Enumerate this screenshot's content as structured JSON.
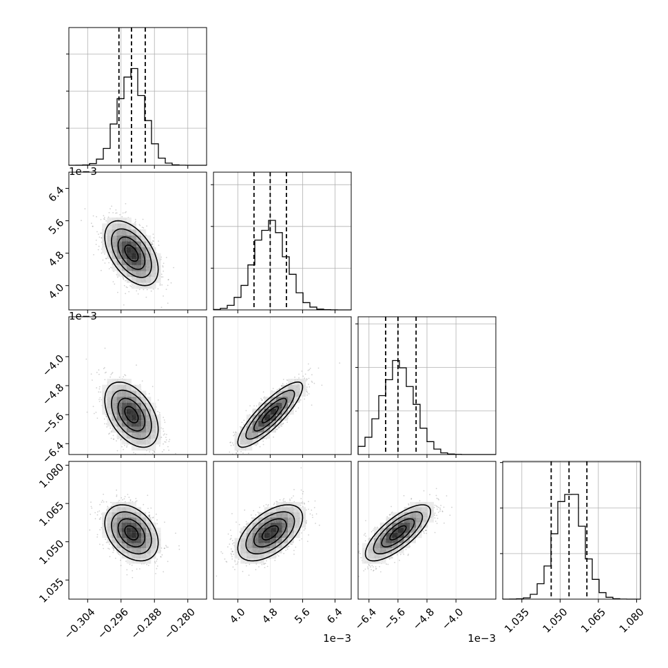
{
  "chart_data": {
    "type": "corner",
    "params": [
      {
        "name": "",
        "range": [
          -0.3085,
          -0.2755
        ],
        "mean": -0.2935,
        "sd": 0.0032,
        "quantiles": [
          -0.2965,
          -0.2935,
          -0.2902
        ],
        "ticks": [
          -0.304,
          -0.296,
          -0.288,
          -0.28
        ],
        "tick_labels": [
          "−0.304",
          "−0.296",
          "−0.288",
          "−0.280"
        ],
        "offset": "",
        "hist_peak": 0.27
      },
      {
        "name": "",
        "range": [
          0.0034,
          0.0068
        ],
        "mean": 0.0048,
        "sd": 0.0004,
        "quantiles": [
          0.0044,
          0.0048,
          0.0052
        ],
        "ticks": [
          0.004,
          0.0048,
          0.0056,
          0.0064
        ],
        "tick_labels": [
          "4.0",
          "4.8",
          "5.6",
          "6.4"
        ],
        "offset": "1e−3",
        "hist_peak": 0.24
      },
      {
        "name": "",
        "range": [
          -0.0067,
          -0.0029
        ],
        "mean": -0.0056,
        "sd": 0.00045,
        "quantiles": [
          -0.00594,
          -0.0056,
          -0.0051
        ],
        "ticks": [
          -0.0064,
          -0.0056,
          -0.0048,
          -0.004
        ],
        "tick_labels": [
          "−6.4",
          "−5.6",
          "−4.8",
          "−4.0"
        ],
        "offset": "1e−3",
        "hist_peak": 0.23
      },
      {
        "name": "",
        "range": [
          1.0275,
          1.0815
        ],
        "mean": 1.0535,
        "sd": 0.0055,
        "quantiles": [
          1.0465,
          1.0535,
          1.0605
        ],
        "ticks": [
          1.035,
          1.05,
          1.065,
          1.08
        ],
        "tick_labels": [
          "1.035",
          "1.050",
          "1.065",
          "1.080"
        ],
        "offset": "",
        "hist_peak": 0.22
      }
    ],
    "correlations": [
      [
        1,
        -0.5,
        -0.45,
        -0.35
      ],
      [
        -0.5,
        1,
        0.85,
        0.55
      ],
      [
        -0.45,
        0.85,
        1,
        0.75
      ],
      [
        -0.35,
        0.55,
        0.75,
        1
      ]
    ],
    "colors": {
      "hist": "#000000",
      "quantile_line": "#000000",
      "density": "#000000",
      "points": "#777777",
      "grid": "#b0b0b0"
    },
    "grid": true,
    "contour_levels": 3
  }
}
